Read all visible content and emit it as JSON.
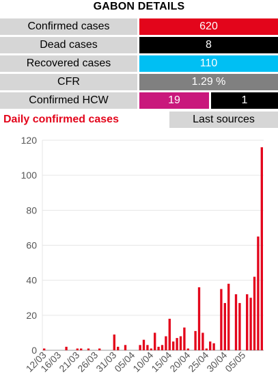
{
  "header": {
    "title": "GABON DETAILS"
  },
  "stats": [
    {
      "label": "Confirmed cases",
      "value": "620",
      "color": "#e3051b"
    },
    {
      "label": "Dead cases",
      "value": "8",
      "color": "#000000"
    },
    {
      "label": "Recovered cases",
      "value": "110",
      "color": "#00bff3"
    },
    {
      "label": "CFR",
      "value": "1.29 %",
      "color": "#808080"
    }
  ],
  "hcw": {
    "label": "Confirmed HCW",
    "value1": "19",
    "color1": "#c9187c",
    "value2": "1",
    "color2": "#000000"
  },
  "section": {
    "title": "Daily confirmed cases",
    "button_label": "Last sources"
  },
  "chart_data": {
    "type": "bar",
    "bar_color": "#e3051b",
    "start": "2020-03-12",
    "values": [
      1,
      0,
      0,
      0,
      0,
      0,
      2,
      0,
      0,
      1,
      1,
      0,
      1,
      0,
      0,
      1,
      0,
      0,
      0,
      9,
      2,
      0,
      3,
      0,
      0,
      0,
      3,
      6,
      3,
      1,
      10,
      2,
      3,
      8,
      18,
      5,
      7,
      8,
      13,
      1,
      0,
      11,
      36,
      10,
      1,
      5,
      4,
      0,
      35,
      27,
      38,
      0,
      32,
      27,
      0,
      32,
      30,
      42,
      65,
      116
    ],
    "x_tick_labels": [
      "12/03",
      "16/03",
      "21/03",
      "26/03",
      "31/03",
      "05/04",
      "10/04",
      "15/04",
      "20/04",
      "25/04",
      "30/04",
      "05/05"
    ],
    "y_ticks": [
      0,
      20,
      40,
      60,
      80,
      100,
      120
    ],
    "ylim": [
      0,
      120
    ]
  }
}
